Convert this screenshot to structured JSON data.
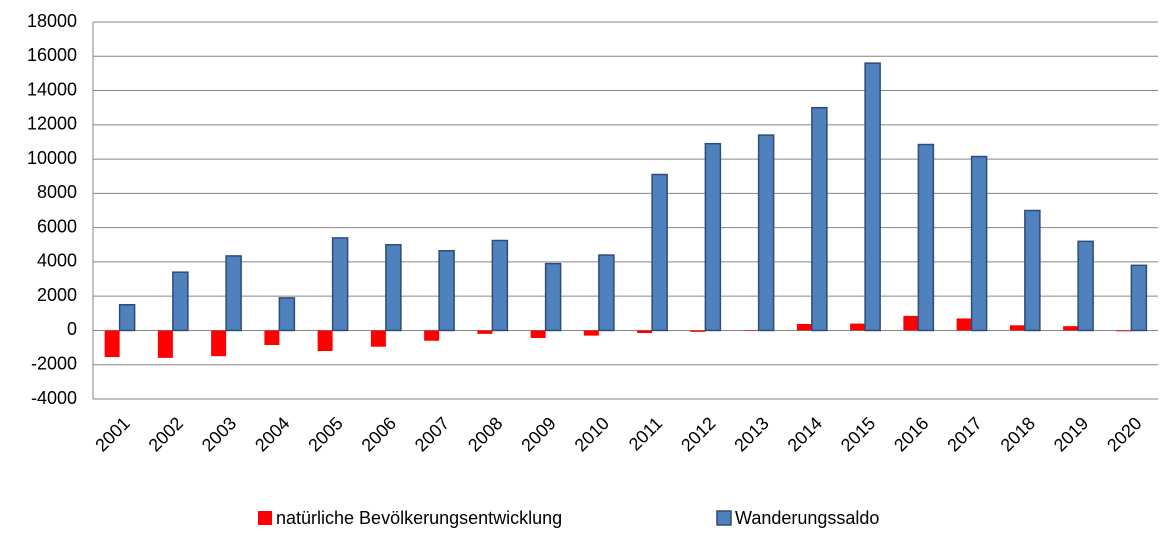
{
  "chart_data": {
    "type": "bar",
    "categories": [
      "2001",
      "2002",
      "2003",
      "2004",
      "2005",
      "2006",
      "2007",
      "2008",
      "2009",
      "2010",
      "2011",
      "2012",
      "2013",
      "2014",
      "2015",
      "2016",
      "2017",
      "2018",
      "2019",
      "2020"
    ],
    "series": [
      {
        "name": "natürliche Bevölkerungsentwicklung",
        "color": "#ff0000",
        "values": [
          -1550,
          -1600,
          -1500,
          -850,
          -1200,
          -950,
          -600,
          -200,
          -440,
          -300,
          -150,
          -80,
          -30,
          380,
          400,
          850,
          700,
          300,
          250,
          -50
        ]
      },
      {
        "name": "Wanderungssaldo",
        "color": "#4f81bd",
        "values": [
          1500,
          3400,
          4350,
          1900,
          5400,
          5000,
          4650,
          5250,
          3900,
          4400,
          9100,
          10900,
          11400,
          13000,
          15600,
          10850,
          10150,
          7000,
          5200,
          3800
        ]
      }
    ],
    "ylim": [
      -4000,
      18000
    ],
    "yticks": [
      -4000,
      -2000,
      0,
      2000,
      4000,
      6000,
      8000,
      10000,
      12000,
      14000,
      16000,
      18000
    ],
    "grid": true,
    "legend": "bottom"
  }
}
